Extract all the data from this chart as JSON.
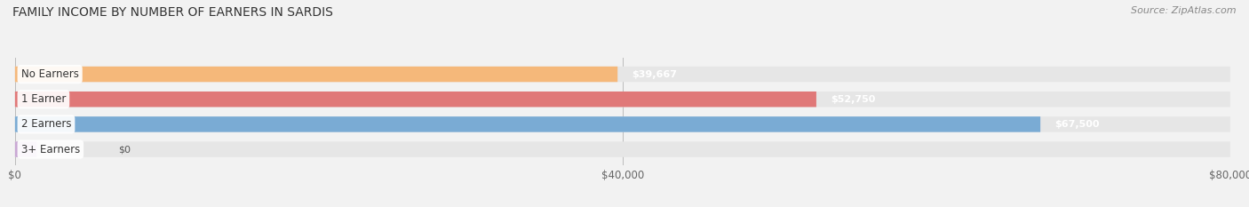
{
  "title": "FAMILY INCOME BY NUMBER OF EARNERS IN SARDIS",
  "source": "Source: ZipAtlas.com",
  "categories": [
    "No Earners",
    "1 Earner",
    "2 Earners",
    "3+ Earners"
  ],
  "values": [
    39667,
    52750,
    67500,
    0
  ],
  "bar_colors": [
    "#f5b87a",
    "#e07878",
    "#7aabd4",
    "#c9a8d4"
  ],
  "bar_bg_color": "#e6e6e6",
  "fig_bg_color": "#f2f2f2",
  "xlim": [
    0,
    80000
  ],
  "xtick_labels": [
    "$0",
    "$40,000",
    "$80,000"
  ],
  "xtick_values": [
    0,
    40000,
    80000
  ],
  "title_fontsize": 10,
  "source_fontsize": 8,
  "bar_height": 0.62,
  "figsize": [
    14.06,
    2.33
  ],
  "dpi": 100,
  "value_label_zero_color": "#555555",
  "value_label_nonzero_color": "#ffffff"
}
